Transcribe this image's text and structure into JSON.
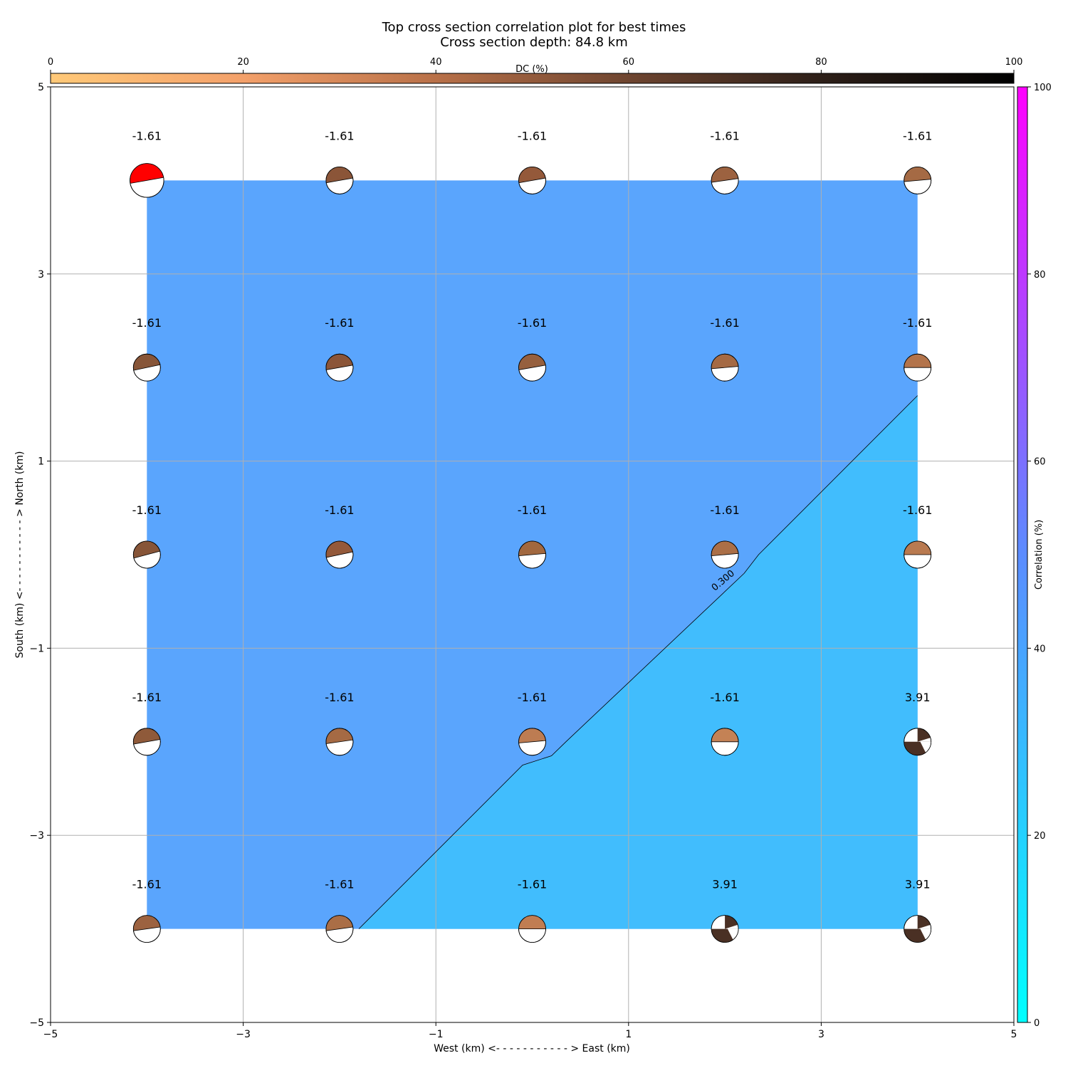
{
  "chart_data": {
    "type": "heatmap",
    "title": "Top cross section correlation plot for best times",
    "subtitle": "Cross section depth: 84.8 km",
    "xlabel": "West (km) <- - - - - - - - - - - > East (km)",
    "ylabel": "South (km) <- - - - - - - - - - - > North (km)",
    "xlim": [
      -5,
      5
    ],
    "ylim": [
      -5,
      5
    ],
    "xticks": [
      "−5",
      "−3",
      "−1",
      "1",
      "3",
      "5"
    ],
    "yticks": [
      "−5",
      "−3",
      "−1",
      "1",
      "3",
      "5"
    ],
    "grid": true,
    "dc_colorbar": {
      "label": "DC (%)",
      "range": [
        0,
        100
      ],
      "ticks": [
        "0",
        "20",
        "40",
        "60",
        "80",
        "100"
      ],
      "placement": "top",
      "colors": [
        "#ffc978",
        "#f3a06a",
        "#b87048",
        "#6e4530",
        "#2d1f18",
        "#000000"
      ]
    },
    "corr_colorbar": {
      "label": "Correlation (%)",
      "range": [
        0,
        100
      ],
      "ticks": [
        "0",
        "20",
        "40",
        "60",
        "80",
        "100"
      ],
      "placement": "right",
      "colors": [
        "#00ffff",
        "#5b8cff",
        "#ff00ff"
      ]
    },
    "contour": {
      "label": "0.300",
      "level": 0.3,
      "path": [
        [
          -1.8,
          -4.0
        ],
        [
          -0.1,
          -2.25
        ],
        [
          0.2,
          -2.15
        ],
        [
          0.35,
          -2.0
        ],
        [
          2.2,
          -0.2
        ],
        [
          2.35,
          0.0
        ],
        [
          4.0,
          1.7
        ]
      ],
      "label_at": [
        2.0,
        -0.3
      ],
      "high_color": "#5aa5fd",
      "low_color": "#41bdfd"
    },
    "grid_x": [
      -4,
      -2,
      0,
      2,
      4
    ],
    "grid_y": [
      4,
      2,
      0,
      -2,
      -4
    ],
    "points": [
      {
        "x": -4,
        "y": 4,
        "label": "-1.61",
        "dc": 100,
        "fill": "#ff0000",
        "size": 1.25,
        "angle": -10
      },
      {
        "x": -2,
        "y": 4,
        "label": "-1.61",
        "dc": 65,
        "fill": "#8b5538",
        "size": 1.0,
        "angle": -10
      },
      {
        "x": 0,
        "y": 4,
        "label": "-1.61",
        "dc": 60,
        "fill": "#94593a",
        "size": 1.0,
        "angle": -10
      },
      {
        "x": 2,
        "y": 4,
        "label": "-1.61",
        "dc": 55,
        "fill": "#9c6240",
        "size": 1.0,
        "angle": -8
      },
      {
        "x": 4,
        "y": 4,
        "label": "-1.61",
        "dc": 50,
        "fill": "#a56a44",
        "size": 1.0,
        "angle": -5
      },
      {
        "x": -4,
        "y": 2,
        "label": "-1.61",
        "dc": 65,
        "fill": "#875538",
        "size": 1.0,
        "angle": -12
      },
      {
        "x": -2,
        "y": 2,
        "label": "-1.61",
        "dc": 65,
        "fill": "#8b5538",
        "size": 1.0,
        "angle": -10
      },
      {
        "x": 0,
        "y": 2,
        "label": "-1.61",
        "dc": 60,
        "fill": "#96603e",
        "size": 1.0,
        "angle": -10
      },
      {
        "x": 2,
        "y": 2,
        "label": "-1.61",
        "dc": 50,
        "fill": "#a56a44",
        "size": 1.0,
        "angle": -5
      },
      {
        "x": 4,
        "y": 2,
        "label": "-1.61",
        "dc": 45,
        "fill": "#b3744b",
        "size": 1.0,
        "angle": 0
      },
      {
        "x": -4,
        "y": 0,
        "label": "-1.61",
        "dc": 65,
        "fill": "#875538",
        "size": 1.0,
        "angle": -15
      },
      {
        "x": -2,
        "y": 0,
        "label": "-1.61",
        "dc": 60,
        "fill": "#94593a",
        "size": 1.0,
        "angle": -12
      },
      {
        "x": 0,
        "y": 0,
        "label": "-1.61",
        "dc": 55,
        "fill": "#a2683f",
        "size": 1.0,
        "angle": -5
      },
      {
        "x": 2,
        "y": 0,
        "label": "-1.61",
        "dc": 50,
        "fill": "#ab6f47",
        "size": 1.0,
        "angle": -5
      },
      {
        "x": 4,
        "y": 0,
        "label": "-1.61",
        "dc": 45,
        "fill": "#b97a50",
        "size": 1.0,
        "angle": 0
      },
      {
        "x": -4,
        "y": -2,
        "label": "-1.61",
        "dc": 60,
        "fill": "#8f5a3a",
        "size": 1.0,
        "angle": -10
      },
      {
        "x": -2,
        "y": -2,
        "label": "-1.61",
        "dc": 50,
        "fill": "#a56a44",
        "size": 1.0,
        "angle": -8
      },
      {
        "x": 0,
        "y": -2,
        "label": "-1.61",
        "dc": 45,
        "fill": "#bd7c52",
        "size": 1.0,
        "angle": -5
      },
      {
        "x": 2,
        "y": -2,
        "label": "-1.61",
        "dc": 40,
        "fill": "#c48255",
        "size": 1.0,
        "angle": 0
      },
      {
        "x": 4,
        "y": -2,
        "label": "3.91",
        "dc": 85,
        "fill": "#4a3024",
        "size": 1.0,
        "angle": 0,
        "dark_bottom": true
      },
      {
        "x": -4,
        "y": -4,
        "label": "-1.61",
        "dc": 55,
        "fill": "#9c6240",
        "size": 1.0,
        "angle": -8
      },
      {
        "x": -2,
        "y": -4,
        "label": "-1.61",
        "dc": 50,
        "fill": "#aa6e46",
        "size": 1.0,
        "angle": -8
      },
      {
        "x": 0,
        "y": -4,
        "label": "-1.61",
        "dc": 45,
        "fill": "#c07d52",
        "size": 1.0,
        "angle": 0
      },
      {
        "x": 2,
        "y": -4,
        "label": "3.91",
        "dc": 85,
        "fill": "#4a3024",
        "size": 1.0,
        "angle": 0,
        "dark_bottom": true
      },
      {
        "x": 4,
        "y": -4,
        "label": "3.91",
        "dc": 85,
        "fill": "#4a3024",
        "size": 1.0,
        "angle": 0,
        "dark_bottom": true
      }
    ]
  }
}
